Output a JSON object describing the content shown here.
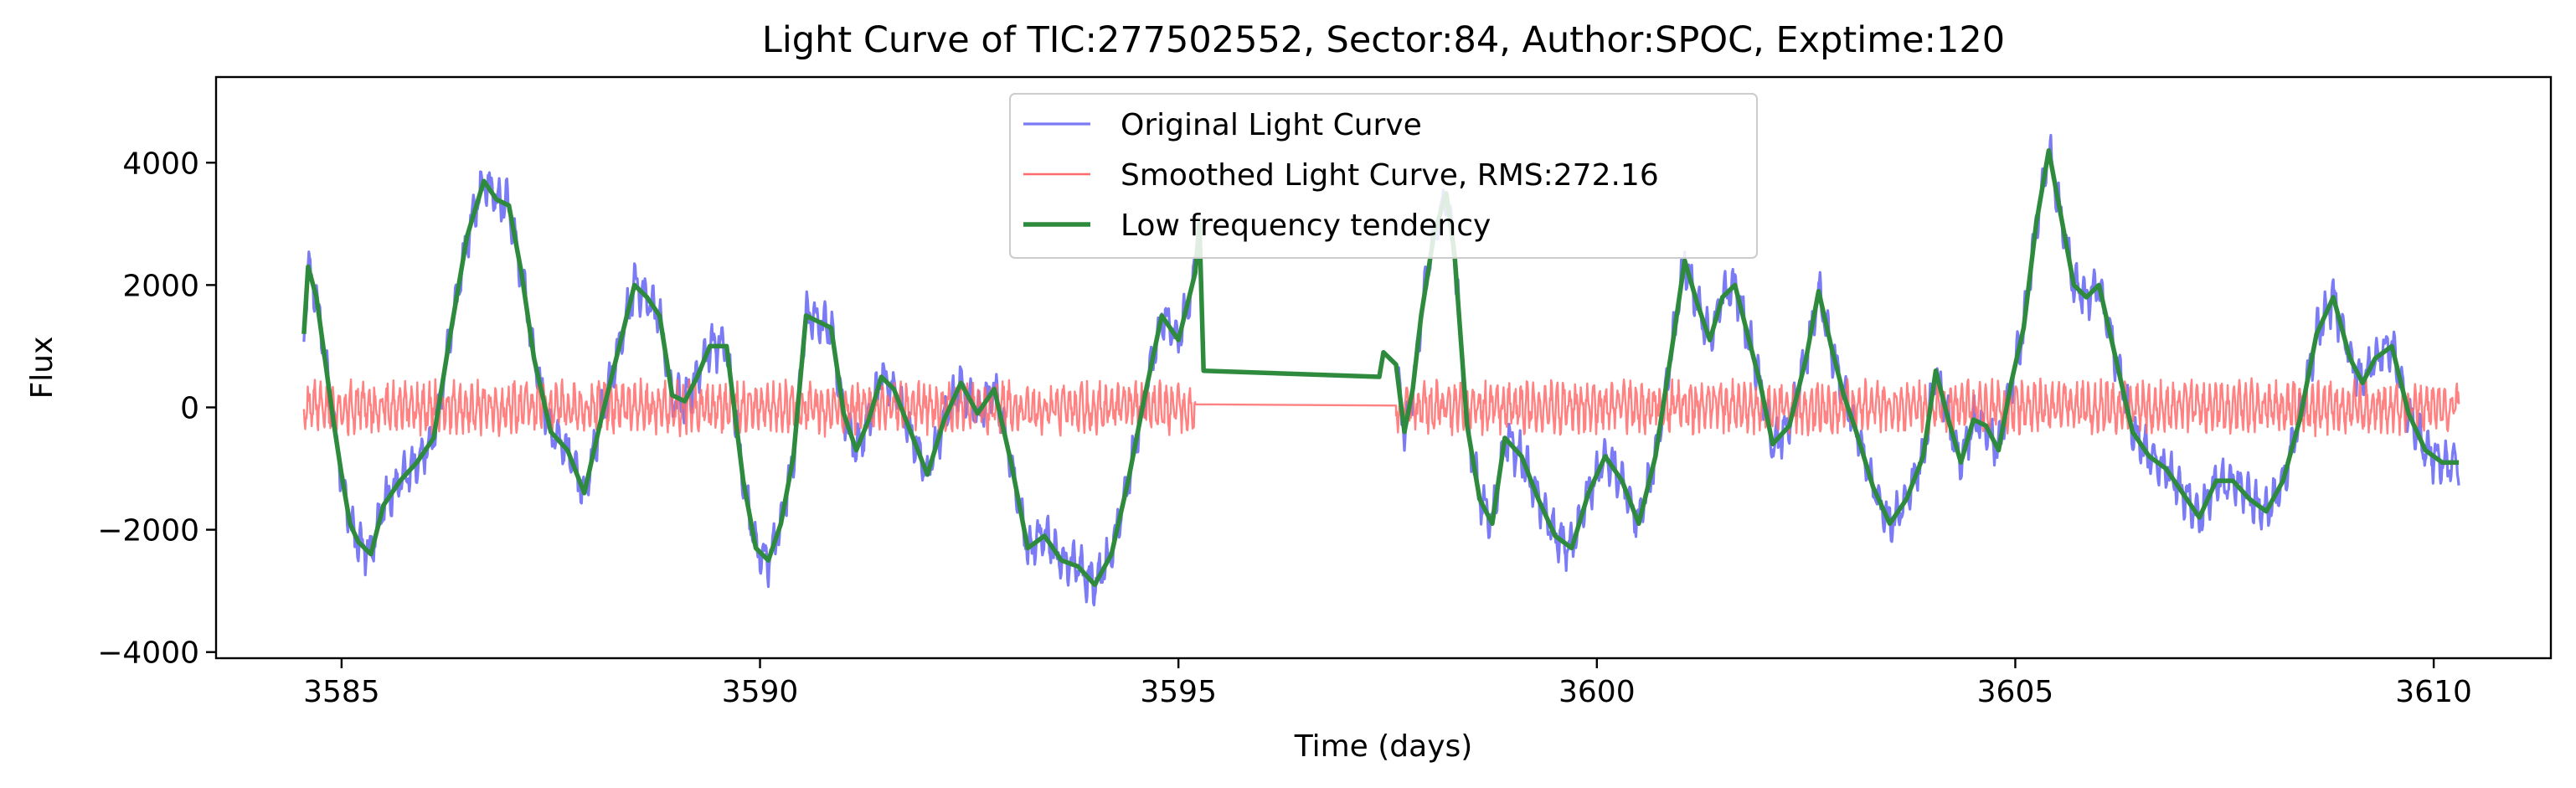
{
  "chart_data": {
    "type": "line",
    "title": "Light Curve of TIC:277502552, Sector:84, Author:SPOC, Exptime:120",
    "xlabel": "Time (days)",
    "ylabel": "Flux",
    "xlim": [
      3583.5,
      3611.4
    ],
    "ylim": [
      -4100,
      5400
    ],
    "xticks": [
      3585,
      3590,
      3595,
      3600,
      3605,
      3610
    ],
    "yticks": [
      -4000,
      -2000,
      0,
      2000,
      4000
    ],
    "xtick_labels": [
      "3585",
      "3590",
      "3595",
      "3600",
      "3605",
      "3610"
    ],
    "ytick_labels": [
      "−4000",
      "−2000",
      "0",
      "2000",
      "4000"
    ],
    "grid": false,
    "legend_position": "top-center",
    "legend": [
      {
        "label": "Original Light Curve",
        "series": "original"
      },
      {
        "label": "Smoothed Light Curve, RMS:272.16",
        "series": "smoothed"
      },
      {
        "label": "Low frequency tendency",
        "series": "trend"
      }
    ],
    "series": [
      {
        "id": "original",
        "name": "Original Light Curve",
        "color": "#7b7bf5",
        "line_width": 3.2,
        "segments": [
          {
            "x": [
              3584.55,
              3584.6,
              3584.7,
              3584.8,
              3584.9,
              3585.0,
              3585.1,
              3585.2,
              3585.35,
              3585.5,
              3585.7,
              3585.9,
              3586.1,
              3586.3,
              3586.5,
              3586.7,
              3586.85,
              3587.0,
              3587.15,
              3587.3,
              3587.5,
              3587.7,
              3587.9,
              3588.1,
              3588.3,
              3588.5,
              3588.65,
              3588.8,
              3588.95,
              3589.1,
              3589.25,
              3589.4,
              3589.6,
              3589.8,
              3589.95,
              3590.1,
              3590.25,
              3590.4,
              3590.55,
              3590.7,
              3590.85,
              3591.0,
              3591.15,
              3591.3,
              3591.45,
              3591.6,
              3591.8,
              3592.0,
              3592.2,
              3592.4,
              3592.6,
              3592.8,
              3593.0,
              3593.2,
              3593.4,
              3593.6,
              3593.8,
              3594.0,
              3594.2,
              3594.4,
              3594.6,
              3594.8,
              3595.0,
              3595.2
            ],
            "y": [
              1200,
              2300,
              1800,
              800,
              -200,
              -1100,
              -1900,
              -2200,
              -2400,
              -1600,
              -1200,
              -900,
              -500,
              1200,
              2800,
              3700,
              3400,
              3300,
              2200,
              800,
              -400,
              -700,
              -1400,
              -200,
              900,
              2000,
              1800,
              1500,
              200,
              100,
              500,
              1000,
              1000,
              -1200,
              -2300,
              -2500,
              -1900,
              -800,
              1500,
              1400,
              1300,
              -100,
              -700,
              -200,
              500,
              300,
              -400,
              -1100,
              -200,
              400,
              -100,
              300,
              -900,
              -2300,
              -2100,
              -2500,
              -2600,
              -2900,
              -2400,
              -1200,
              200,
              1500,
              1100,
              2200
            ]
          },
          {
            "x": [
              3597.6,
              3597.7,
              3597.8,
              3597.9,
              3598.05,
              3598.2,
              3598.3,
              3598.45,
              3598.6,
              3598.75,
              3598.9,
              3599.1,
              3599.3,
              3599.5,
              3599.7,
              3599.9,
              3600.1,
              3600.3,
              3600.5,
              3600.7,
              3600.9,
              3601.05,
              3601.2,
              3601.35,
              3601.5,
              3601.65,
              3601.8,
              3601.95,
              3602.1,
              3602.3,
              3602.5,
              3602.65,
              3602.8,
              3602.95,
              3603.1,
              3603.3,
              3603.5,
              3603.7,
              3603.9,
              3604.05,
              3604.2,
              3604.35,
              3604.5,
              3604.65,
              3604.8,
              3604.95,
              3605.1,
              3605.25,
              3605.4,
              3605.55,
              3605.7,
              3605.85,
              3606.0,
              3606.2,
              3606.4,
              3606.6,
              3606.8,
              3607.0,
              3607.2,
              3607.4,
              3607.6,
              3607.8,
              3608.0,
              3608.2,
              3608.4,
              3608.6,
              3608.8,
              3609.0,
              3609.15,
              3609.3,
              3609.5,
              3609.7,
              3609.9,
              3610.1,
              3610.3
            ],
            "y": [
              700,
              -400,
              300,
              1500,
              2800,
              3500,
              2500,
              -300,
              -1500,
              -1900,
              -500,
              -800,
              -1500,
              -2100,
              -2300,
              -1400,
              -800,
              -1200,
              -1900,
              -800,
              1000,
              2400,
              1700,
              1100,
              1800,
              2000,
              1200,
              400,
              -600,
              -300,
              800,
              1900,
              1000,
              200,
              -400,
              -1300,
              -1900,
              -1500,
              -800,
              600,
              -200,
              -900,
              -200,
              -300,
              -700,
              400,
              1300,
              3000,
              4200,
              3100,
              2000,
              1800,
              2000,
              800,
              -400,
              -800,
              -1000,
              -1400,
              -1800,
              -1200,
              -1200,
              -1500,
              -1700,
              -1200,
              -200,
              1200,
              1800,
              800,
              400,
              800,
              1000,
              -100,
              -700,
              -900,
              -900
            ]
          }
        ]
      },
      {
        "id": "smoothed",
        "name": "Smoothed Light Curve, RMS:272.16",
        "color": "#ff6b6b",
        "line_width": 2.4,
        "segments": [
          {
            "x_start": 3584.55,
            "x_end": 3595.2,
            "level": 0,
            "amplitude": 400
          },
          {
            "x_start": 3597.6,
            "x_end": 3610.3,
            "level": 0,
            "amplitude": 400
          }
        ],
        "gap": {
          "x": [
            3595.2,
            3597.6
          ],
          "y": [
            50,
            30
          ]
        }
      },
      {
        "id": "trend",
        "name": "Low frequency tendency",
        "color": "#2e8b3e",
        "line_width": 5.5,
        "x": [
          3584.55,
          3584.6,
          3584.7,
          3584.8,
          3584.9,
          3585.0,
          3585.1,
          3585.2,
          3585.35,
          3585.5,
          3585.7,
          3585.9,
          3586.1,
          3586.3,
          3586.5,
          3586.7,
          3586.85,
          3587.0,
          3587.15,
          3587.3,
          3587.5,
          3587.7,
          3587.9,
          3588.1,
          3588.3,
          3588.5,
          3588.65,
          3588.8,
          3588.95,
          3589.1,
          3589.25,
          3589.4,
          3589.6,
          3589.8,
          3589.95,
          3590.1,
          3590.25,
          3590.4,
          3590.55,
          3590.7,
          3590.85,
          3591.0,
          3591.15,
          3591.3,
          3591.45,
          3591.6,
          3591.8,
          3592.0,
          3592.2,
          3592.4,
          3592.6,
          3592.8,
          3593.0,
          3593.2,
          3593.4,
          3593.6,
          3593.8,
          3594.0,
          3594.2,
          3594.4,
          3594.6,
          3594.8,
          3595.0,
          3595.2,
          3595.25,
          3595.3,
          3597.4,
          3597.45,
          3597.6,
          3597.7,
          3597.8,
          3597.9,
          3598.05,
          3598.2,
          3598.3,
          3598.45,
          3598.6,
          3598.75,
          3598.9,
          3599.1,
          3599.3,
          3599.5,
          3599.7,
          3599.9,
          3600.1,
          3600.3,
          3600.5,
          3600.7,
          3600.9,
          3601.05,
          3601.2,
          3601.35,
          3601.5,
          3601.65,
          3601.8,
          3601.95,
          3602.1,
          3602.3,
          3602.5,
          3602.65,
          3602.8,
          3602.95,
          3603.1,
          3603.3,
          3603.5,
          3603.7,
          3603.9,
          3604.05,
          3604.2,
          3604.35,
          3604.5,
          3604.65,
          3604.8,
          3604.95,
          3605.1,
          3605.25,
          3605.4,
          3605.55,
          3605.7,
          3605.85,
          3606.0,
          3606.2,
          3606.4,
          3606.6,
          3606.8,
          3607.0,
          3607.2,
          3607.4,
          3607.6,
          3607.8,
          3608.0,
          3608.2,
          3608.4,
          3608.6,
          3608.8,
          3609.0,
          3609.15,
          3609.3,
          3609.5,
          3609.7,
          3609.9,
          3610.1,
          3610.3
        ],
        "y": [
          1200,
          2300,
          1800,
          800,
          -200,
          -1100,
          -1900,
          -2200,
          -2400,
          -1600,
          -1200,
          -900,
          -500,
          1200,
          2800,
          3700,
          3400,
          3300,
          2200,
          800,
          -400,
          -700,
          -1400,
          -200,
          900,
          2000,
          1800,
          1500,
          200,
          100,
          500,
          1000,
          1000,
          -1200,
          -2300,
          -2500,
          -1900,
          -800,
          1500,
          1400,
          1300,
          -100,
          -700,
          -200,
          500,
          300,
          -400,
          -1100,
          -200,
          400,
          -100,
          300,
          -900,
          -2300,
          -2100,
          -2500,
          -2600,
          -2900,
          -2400,
          -1200,
          200,
          1500,
          1100,
          2200,
          3000,
          600,
          500,
          900,
          700,
          -400,
          300,
          1500,
          2800,
          3500,
          2500,
          -300,
          -1500,
          -1900,
          -500,
          -800,
          -1500,
          -2100,
          -2300,
          -1400,
          -800,
          -1200,
          -1900,
          -800,
          1000,
          2400,
          1700,
          1100,
          1800,
          2000,
          1200,
          400,
          -600,
          -300,
          800,
          1900,
          1000,
          200,
          -400,
          -1300,
          -1900,
          -1500,
          -800,
          600,
          -200,
          -900,
          -200,
          -300,
          -700,
          400,
          1300,
          3000,
          4200,
          3100,
          2000,
          1800,
          2000,
          800,
          -400,
          -800,
          -1000,
          -1400,
          -1800,
          -1200,
          -1200,
          -1500,
          -1700,
          -1200,
          -200,
          1200,
          1800,
          800,
          400,
          800,
          1000,
          -100,
          -700,
          -900,
          -900
        ]
      }
    ]
  }
}
